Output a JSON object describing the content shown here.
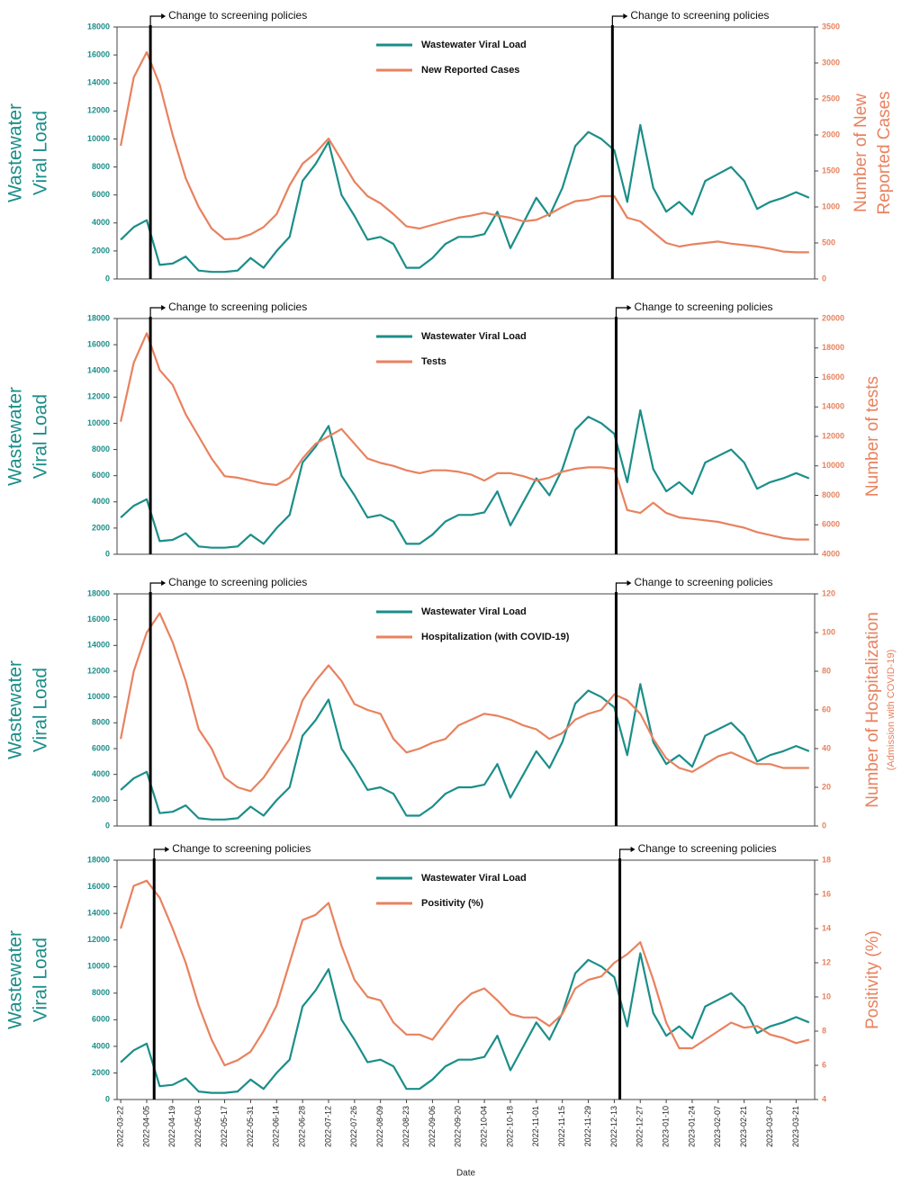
{
  "chart_data": [
    {
      "type": "line",
      "ylabel": [
        "Wastewater",
        "Viral Load"
      ],
      "y2label": [
        "Number of New",
        "Reported Cases"
      ],
      "xlim": [
        "2022-03-20",
        "2023-03-31"
      ],
      "ylim": [
        0,
        18000
      ],
      "yticks": [
        0,
        2000,
        4000,
        6000,
        8000,
        10000,
        12000,
        14000,
        16000,
        18000
      ],
      "y2lim": [
        0,
        3500
      ],
      "y2ticks": [
        0,
        500,
        1000,
        1500,
        2000,
        2500,
        3000,
        3500
      ],
      "annotations": [
        {
          "x": "2022-04-07",
          "text": "Change to screening policies"
        },
        {
          "x": "2022-12-12",
          "text": "Change to screening policies"
        }
      ],
      "series": [
        {
          "name": "Wastewater Viral Load",
          "color": "#1b8e89",
          "values": [
            2800,
            3700,
            4200,
            1000,
            1100,
            1600,
            600,
            500,
            500,
            600,
            1500,
            800,
            2000,
            3000,
            7000,
            8200,
            9800,
            6000,
            4500,
            2800,
            3000,
            2500,
            800,
            800,
            1500,
            2500,
            3000,
            3000,
            3200,
            4800,
            2200,
            4000,
            5800,
            4500,
            6500,
            9500,
            10500,
            10000,
            9200,
            5500,
            11000,
            6500,
            4800,
            5500,
            4600,
            7000,
            7500,
            8000,
            7000,
            5000,
            5500,
            5800,
            6200,
            5800
          ]
        },
        {
          "name": "New Reported Cases",
          "color": "#e8825f",
          "axis": "y2",
          "values": [
            1850,
            2800,
            3150,
            2700,
            2000,
            1400,
            1000,
            700,
            550,
            560,
            620,
            720,
            900,
            1300,
            1600,
            1750,
            1950,
            1650,
            1350,
            1150,
            1050,
            900,
            730,
            700,
            750,
            800,
            850,
            880,
            920,
            880,
            850,
            800,
            820,
            900,
            1000,
            1080,
            1100,
            1150,
            1150,
            850,
            800,
            650,
            500,
            450,
            480,
            500,
            520,
            490,
            470,
            450,
            420,
            380,
            370,
            370
          ]
        }
      ]
    },
    {
      "type": "line",
      "ylabel": [
        "Wastewater",
        "Viral Load"
      ],
      "y2label": [
        "Number of tests"
      ],
      "xlim": [
        "2022-03-20",
        "2023-03-31"
      ],
      "ylim": [
        0,
        18000
      ],
      "yticks": [
        0,
        2000,
        4000,
        6000,
        8000,
        10000,
        12000,
        14000,
        16000,
        18000
      ],
      "y2lim": [
        4000,
        20000
      ],
      "y2ticks": [
        4000,
        6000,
        8000,
        10000,
        12000,
        14000,
        16000,
        18000,
        20000
      ],
      "annotations": [
        {
          "x": "2022-04-07",
          "text": "Change to screening policies"
        },
        {
          "x": "2022-12-14",
          "text": "Change to screening policies"
        }
      ],
      "series": [
        {
          "name": "Wastewater Viral Load",
          "color": "#1b8e89",
          "values": [
            2800,
            3700,
            4200,
            1000,
            1100,
            1600,
            600,
            500,
            500,
            600,
            1500,
            800,
            2000,
            3000,
            7000,
            8200,
            9800,
            6000,
            4500,
            2800,
            3000,
            2500,
            800,
            800,
            1500,
            2500,
            3000,
            3000,
            3200,
            4800,
            2200,
            4000,
            5800,
            4500,
            6500,
            9500,
            10500,
            10000,
            9200,
            5500,
            11000,
            6500,
            4800,
            5500,
            4600,
            7000,
            7500,
            8000,
            7000,
            5000,
            5500,
            5800,
            6200,
            5800
          ]
        },
        {
          "name": "Tests",
          "color": "#e8825f",
          "axis": "y2",
          "values": [
            13000,
            17000,
            19000,
            16500,
            15500,
            13500,
            12000,
            10500,
            9300,
            9200,
            9000,
            8800,
            8700,
            9200,
            10500,
            11500,
            12000,
            12500,
            11500,
            10500,
            10200,
            10000,
            9700,
            9500,
            9700,
            9700,
            9600,
            9400,
            9000,
            9500,
            9500,
            9300,
            9000,
            9200,
            9600,
            9800,
            9900,
            9900,
            9800,
            7000,
            6800,
            7500,
            6800,
            6500,
            6400,
            6300,
            6200,
            6000,
            5800,
            5500,
            5300,
            5100,
            5000,
            5000
          ]
        }
      ]
    },
    {
      "type": "line",
      "ylabel": [
        "Wastewater",
        "Viral Load"
      ],
      "y2label": [
        "Number of Hospitalization"
      ],
      "y2note": "(Admission with COVID-19)",
      "xlim": [
        "2022-03-20",
        "2023-03-31"
      ],
      "ylim": [
        0,
        18000
      ],
      "yticks": [
        0,
        2000,
        4000,
        6000,
        8000,
        10000,
        12000,
        14000,
        16000,
        18000
      ],
      "y2lim": [
        0,
        120
      ],
      "y2ticks": [
        0,
        20,
        40,
        60,
        80,
        100,
        120
      ],
      "annotations": [
        {
          "x": "2022-04-07",
          "text": "Change to screening policies"
        },
        {
          "x": "2022-12-14",
          "text": "Change to screening policies"
        }
      ],
      "series": [
        {
          "name": "Wastewater Viral Load",
          "color": "#1b8e89",
          "values": [
            2800,
            3700,
            4200,
            1000,
            1100,
            1600,
            600,
            500,
            500,
            600,
            1500,
            800,
            2000,
            3000,
            7000,
            8200,
            9800,
            6000,
            4500,
            2800,
            3000,
            2500,
            800,
            800,
            1500,
            2500,
            3000,
            3000,
            3200,
            4800,
            2200,
            4000,
            5800,
            4500,
            6500,
            9500,
            10500,
            10000,
            9200,
            5500,
            11000,
            6500,
            4800,
            5500,
            4600,
            7000,
            7500,
            8000,
            7000,
            5000,
            5500,
            5800,
            6200,
            5800
          ]
        },
        {
          "name": "Hospitalization (with COVID-19)",
          "color": "#e8825f",
          "axis": "y2",
          "values": [
            45,
            80,
            100,
            110,
            95,
            75,
            50,
            40,
            25,
            20,
            18,
            25,
            35,
            45,
            65,
            75,
            83,
            75,
            63,
            60,
            58,
            45,
            38,
            40,
            43,
            45,
            52,
            55,
            58,
            57,
            55,
            52,
            50,
            45,
            48,
            55,
            58,
            60,
            68,
            65,
            58,
            45,
            35,
            30,
            28,
            32,
            36,
            38,
            35,
            32,
            32,
            30,
            30,
            30
          ]
        }
      ]
    },
    {
      "type": "line",
      "ylabel": [
        "Wastewater",
        "Viral Load"
      ],
      "y2label": [
        "Positivity (%)"
      ],
      "xlabel": "Date",
      "xlim": [
        "2022-03-20",
        "2023-03-31"
      ],
      "ylim": [
        0,
        18000
      ],
      "yticks": [
        0,
        2000,
        4000,
        6000,
        8000,
        10000,
        12000,
        14000,
        16000,
        18000
      ],
      "y2lim": [
        4,
        18
      ],
      "y2ticks": [
        4,
        6,
        8,
        10,
        12,
        14,
        16,
        18
      ],
      "xticks": [
        "2022-03-22",
        "2022-04-05",
        "2022-04-19",
        "2022-05-03",
        "2022-05-17",
        "2022-05-31",
        "2022-06-14",
        "2022-06-28",
        "2022-07-12",
        "2022-07-26",
        "2022-08-09",
        "2022-08-23",
        "2022-09-06",
        "2022-09-20",
        "2022-10-04",
        "2022-10-18",
        "2022-11-01",
        "2022-11-15",
        "2022-11-29",
        "2022-12-13",
        "2022-12-27",
        "2023-01-10",
        "2023-01-24",
        "2023-02-07",
        "2023-02-21",
        "2023-03-07",
        "2023-03-21"
      ],
      "annotations": [
        {
          "x": "2022-04-09",
          "text": "Change to screening policies"
        },
        {
          "x": "2022-12-16",
          "text": "Change to screening policies"
        }
      ],
      "series": [
        {
          "name": "Wastewater Viral Load",
          "color": "#1b8e89",
          "values": [
            2800,
            3700,
            4200,
            1000,
            1100,
            1600,
            600,
            500,
            500,
            600,
            1500,
            800,
            2000,
            3000,
            7000,
            8200,
            9800,
            6000,
            4500,
            2800,
            3000,
            2500,
            800,
            800,
            1500,
            2500,
            3000,
            3000,
            3200,
            4800,
            2200,
            4000,
            5800,
            4500,
            6500,
            9500,
            10500,
            10000,
            9200,
            5500,
            11000,
            6500,
            4800,
            5500,
            4600,
            7000,
            7500,
            8000,
            7000,
            5000,
            5500,
            5800,
            6200,
            5800
          ]
        },
        {
          "name": "Positivity (%)",
          "color": "#e8825f",
          "axis": "y2",
          "values": [
            14,
            16.5,
            16.8,
            15.8,
            14,
            12,
            9.5,
            7.5,
            6,
            6.3,
            6.8,
            8,
            9.5,
            12,
            14.5,
            14.8,
            15.5,
            13,
            11,
            10,
            9.8,
            8.5,
            7.8,
            7.8,
            7.5,
            8.5,
            9.5,
            10.2,
            10.5,
            9.8,
            9,
            8.8,
            8.8,
            8.3,
            9,
            10.5,
            11,
            11.2,
            12,
            12.5,
            13.2,
            11,
            8.5,
            7,
            7,
            7.5,
            8,
            8.5,
            8.2,
            8.3,
            7.8,
            7.6,
            7.3,
            7.5
          ]
        }
      ]
    }
  ]
}
